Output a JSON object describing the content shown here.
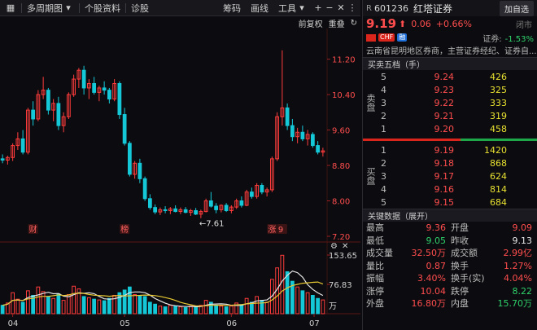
{
  "toolbar": {
    "period": "多周期图",
    "item_profile": "个股资料",
    "item_diag": "诊股",
    "item_chip": "筹码",
    "item_draw": "画线",
    "item_tools": "工具",
    "subbar_restore": "前复权",
    "subbar_overlay": "重叠"
  },
  "chart_data": {
    "type": "candlestick",
    "price_axis_ticks": [
      "11.20",
      "10.40",
      "9.60",
      "8.80",
      "8.00",
      "7.20"
    ],
    "price_ylim": [
      7.2,
      11.8
    ],
    "volume_axis_ticks": [
      "153.65",
      "76.83"
    ],
    "volume_unit": "万",
    "x_labels": [
      "04",
      "05",
      "06",
      "07"
    ],
    "low_marker": "←7.61",
    "event_markers": [
      "财",
      "榜",
      "涨",
      "9"
    ],
    "colors": {
      "up": "#ff3b3b",
      "down": "#14c8d8",
      "ma_white": "#e6e6e6",
      "ma_yellow": "#e8c832"
    },
    "candles": [
      [
        8.95,
        9.05,
        8.85,
        8.92
      ],
      [
        8.92,
        9.02,
        8.82,
        8.98
      ],
      [
        8.98,
        9.3,
        8.9,
        9.25
      ],
      [
        9.25,
        9.55,
        9.15,
        9.4
      ],
      [
        9.4,
        9.6,
        9.05,
        9.1
      ],
      [
        9.1,
        10.1,
        9.05,
        10.05
      ],
      [
        10.05,
        10.25,
        9.7,
        9.85
      ],
      [
        9.85,
        10.5,
        9.8,
        10.4
      ],
      [
        10.4,
        10.8,
        10.3,
        10.5
      ],
      [
        10.5,
        10.55,
        9.95,
        10.05
      ],
      [
        10.05,
        10.3,
        9.8,
        10.2
      ],
      [
        10.2,
        10.35,
        9.6,
        9.7
      ],
      [
        9.7,
        10.0,
        9.55,
        9.9
      ],
      [
        9.9,
        10.45,
        9.85,
        10.4
      ],
      [
        10.4,
        10.85,
        10.35,
        10.75
      ],
      [
        10.75,
        11.0,
        10.55,
        10.95
      ],
      [
        10.95,
        11.05,
        10.4,
        10.55
      ],
      [
        10.55,
        10.75,
        10.3,
        10.65
      ],
      [
        10.65,
        10.8,
        10.4,
        10.45
      ],
      [
        10.45,
        10.6,
        10.25,
        10.55
      ],
      [
        10.55,
        10.7,
        10.4,
        10.5
      ],
      [
        10.5,
        10.55,
        10.2,
        10.3
      ],
      [
        10.3,
        10.75,
        10.25,
        10.65
      ],
      [
        10.65,
        10.7,
        9.85,
        9.95
      ],
      [
        9.95,
        10.1,
        9.25,
        9.3
      ],
      [
        9.3,
        9.35,
        8.55,
        8.6
      ],
      [
        8.6,
        8.9,
        8.5,
        8.85
      ],
      [
        8.85,
        8.95,
        8.4,
        8.5
      ],
      [
        8.5,
        8.55,
        8.0,
        8.05
      ],
      [
        8.05,
        8.15,
        7.8,
        7.85
      ],
      [
        7.85,
        7.92,
        7.7,
        7.75
      ],
      [
        7.75,
        7.85,
        7.68,
        7.8
      ],
      [
        7.8,
        7.88,
        7.72,
        7.78
      ],
      [
        7.78,
        7.86,
        7.7,
        7.82
      ],
      [
        7.82,
        7.9,
        7.74,
        7.76
      ],
      [
        7.76,
        7.85,
        7.7,
        7.8
      ],
      [
        7.8,
        7.86,
        7.72,
        7.74
      ],
      [
        7.74,
        7.82,
        7.66,
        7.78
      ],
      [
        7.78,
        7.84,
        7.68,
        7.7
      ],
      [
        7.7,
        7.8,
        7.61,
        7.76
      ],
      [
        7.76,
        8.05,
        7.74,
        8.0
      ],
      [
        8.0,
        8.2,
        7.85,
        7.88
      ],
      [
        7.88,
        7.95,
        7.72,
        7.8
      ],
      [
        7.8,
        7.92,
        7.74,
        7.9
      ],
      [
        7.9,
        7.95,
        7.75,
        7.78
      ],
      [
        7.78,
        7.9,
        7.72,
        7.86
      ],
      [
        7.86,
        8.05,
        7.82,
        8.0
      ],
      [
        8.0,
        8.1,
        7.85,
        7.9
      ],
      [
        7.9,
        8.25,
        7.88,
        8.2
      ],
      [
        8.2,
        8.3,
        8.05,
        8.1
      ],
      [
        8.1,
        8.4,
        8.05,
        8.35
      ],
      [
        8.35,
        8.4,
        8.15,
        8.2
      ],
      [
        8.2,
        8.3,
        8.1,
        8.25
      ],
      [
        8.25,
        9.0,
        8.2,
        8.95
      ],
      [
        8.95,
        10.0,
        8.9,
        9.9
      ],
      [
        9.9,
        11.4,
        9.7,
        10.1
      ],
      [
        10.1,
        10.2,
        9.6,
        9.7
      ],
      [
        9.7,
        9.85,
        9.35,
        9.45
      ],
      [
        9.45,
        9.65,
        9.3,
        9.55
      ],
      [
        9.55,
        9.7,
        9.35,
        9.4
      ],
      [
        9.4,
        9.6,
        9.25,
        9.5
      ],
      [
        9.5,
        9.55,
        9.2,
        9.25
      ],
      [
        9.25,
        9.35,
        9.05,
        9.1
      ],
      [
        9.1,
        9.2,
        9.0,
        9.13
      ]
    ],
    "volumes": [
      22,
      28,
      55,
      38,
      30,
      60,
      48,
      70,
      58,
      45,
      40,
      52,
      35,
      50,
      72,
      65,
      45,
      42,
      38,
      36,
      34,
      40,
      48,
      55,
      62,
      70,
      50,
      48,
      45,
      30,
      25,
      20,
      18,
      22,
      20,
      18,
      16,
      20,
      18,
      22,
      35,
      30,
      22,
      20,
      18,
      20,
      28,
      24,
      40,
      30,
      45,
      35,
      30,
      90,
      120,
      153,
      110,
      85,
      70,
      60,
      55,
      48,
      40,
      36
    ],
    "ma_price_white": [
      9.0,
      9.05,
      9.2,
      9.4,
      9.7,
      9.95,
      10.1,
      10.3,
      10.4,
      10.45,
      10.5,
      10.55,
      10.6,
      10.6,
      10.55,
      10.45,
      10.3,
      10.0,
      9.6,
      9.2,
      8.8,
      8.4,
      8.1,
      7.9,
      7.85,
      7.82,
      7.8,
      7.8,
      7.82,
      7.85,
      7.9,
      7.95,
      8.05,
      8.2,
      8.5,
      9.0,
      9.4,
      9.6,
      9.55,
      9.45,
      9.3
    ]
  },
  "panel": {
    "prefix": "R",
    "code": "601236",
    "name": "红塔证券",
    "add_button": "加自选",
    "price": "9.19",
    "arrow": "⬆",
    "change": "0.06",
    "change_pct": "+0.66%",
    "status": "闭市",
    "tag1": "CHF",
    "tag2": "融",
    "industry_label": "证券:",
    "industry_pct": "-1.53%",
    "description": "云南省昆明地区券商，主营证券经纪、证券自...",
    "book_title": "买卖五档（手）",
    "sell_label": "卖盘",
    "buy_label": "买盘",
    "asks": [
      {
        "lvl": "5",
        "price": "9.24",
        "vol": "426"
      },
      {
        "lvl": "4",
        "price": "9.23",
        "vol": "325"
      },
      {
        "lvl": "3",
        "price": "9.22",
        "vol": "333"
      },
      {
        "lvl": "2",
        "price": "9.21",
        "vol": "319"
      },
      {
        "lvl": "1",
        "price": "9.20",
        "vol": "458"
      }
    ],
    "bids": [
      {
        "lvl": "1",
        "price": "9.19",
        "vol": "1420"
      },
      {
        "lvl": "2",
        "price": "9.18",
        "vol": "868"
      },
      {
        "lvl": "3",
        "price": "9.17",
        "vol": "624"
      },
      {
        "lvl": "4",
        "price": "9.16",
        "vol": "814"
      },
      {
        "lvl": "5",
        "price": "9.15",
        "vol": "684"
      }
    ],
    "key_title": "关键数据（展开）",
    "key_data": [
      {
        "k1": "最高",
        "v1": "9.36",
        "c1": "red",
        "k2": "开盘",
        "v2": "9.09",
        "c2": "red"
      },
      {
        "k1": "最低",
        "v1": "9.05",
        "c1": "green",
        "k2": "昨收",
        "v2": "9.13",
        "c2": "white"
      },
      {
        "k1": "成交量",
        "v1": "32.50万",
        "c1": "red",
        "k2": "成交额",
        "v2": "2.99亿",
        "c2": "red"
      },
      {
        "k1": "量比",
        "v1": "0.87",
        "c1": "red",
        "k2": "换手",
        "v2": "1.27%",
        "c2": "red"
      },
      {
        "k1": "振幅",
        "v1": "3.40%",
        "c1": "red",
        "k2": "换手(实)",
        "v2": "4.04%",
        "c2": "red"
      },
      {
        "k1": "涨停",
        "v1": "10.04",
        "c1": "red",
        "k2": "跌停",
        "v2": "8.22",
        "c2": "green"
      },
      {
        "k1": "外盘",
        "v1": "16.80万",
        "c1": "red",
        "k2": "内盘",
        "v2": "15.70万",
        "c2": "green"
      }
    ]
  }
}
